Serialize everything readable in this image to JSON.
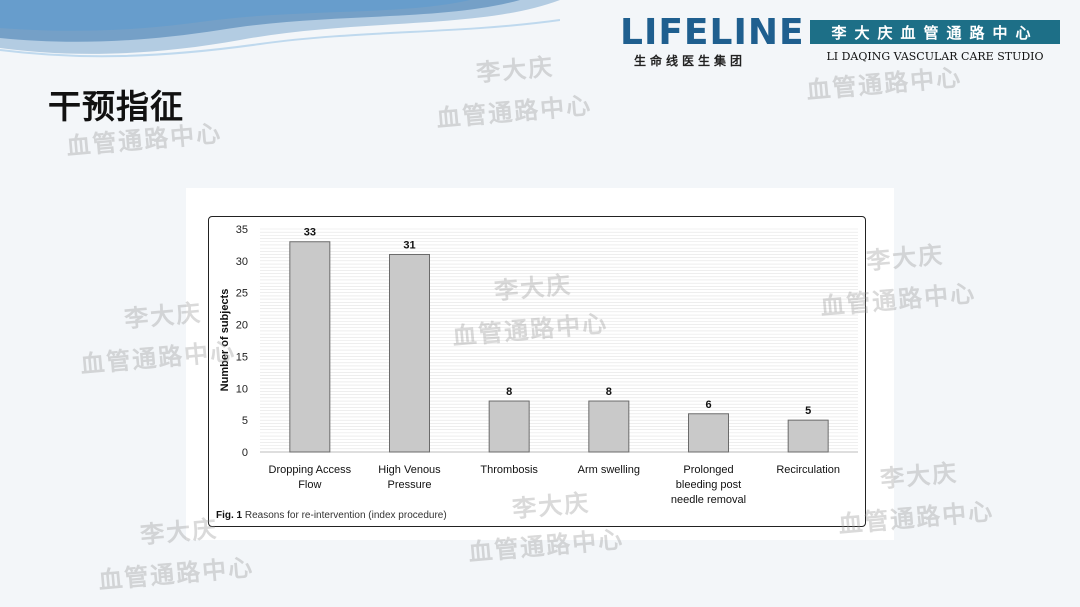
{
  "slide": {
    "title": "干预指征"
  },
  "logos": {
    "lifeline_main": "LIFELINE",
    "lifeline_sub": "生命线医生集团",
    "studio_cn": "李大庆血管通路中心",
    "studio_en": "LI DAQING VASCULAR CARE STUDIO"
  },
  "watermark": {
    "line1": "李大庆",
    "line2": "血管通路中心"
  },
  "colors": {
    "brand_blue": "#1f5f8f",
    "studio_teal": "#1d6f87",
    "bar_fill": "#c9c9c9",
    "bar_stroke": "#6b6b6b"
  },
  "caption": {
    "label": "Fig. 1",
    "text": " Reasons for re-intervention (index procedure)"
  },
  "chart_data": {
    "type": "bar",
    "categories": [
      [
        "Dropping Access",
        "Flow"
      ],
      [
        "High Venous",
        "Pressure"
      ],
      [
        "Thrombosis"
      ],
      [
        "Arm swelling"
      ],
      [
        "Prolonged",
        "bleeding post",
        "needle removal"
      ],
      [
        "Recirculation"
      ]
    ],
    "values": [
      33,
      31,
      8,
      8,
      6,
      5
    ],
    "ylabel": "Number of subjects",
    "ylim": [
      0,
      35
    ],
    "yticks": [
      0,
      5,
      10,
      15,
      20,
      25,
      30,
      35
    ],
    "grid": true
  }
}
